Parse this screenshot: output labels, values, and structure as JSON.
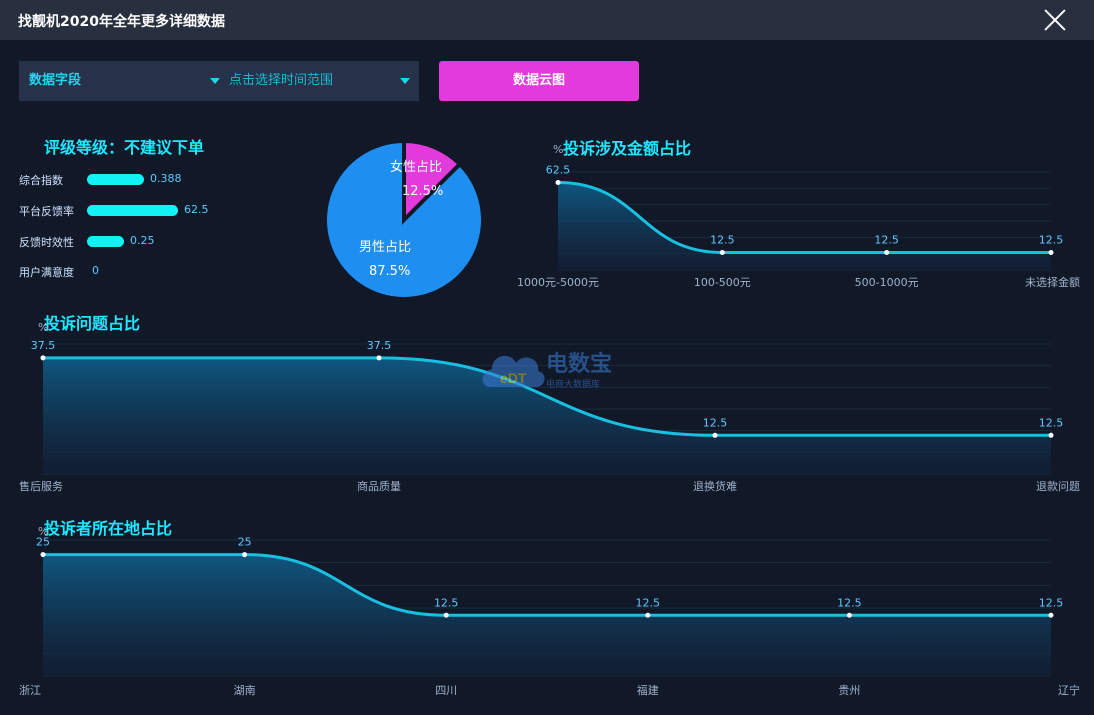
{
  "window": {
    "title": "找靓机2020年全年更多详细数据"
  },
  "filters": {
    "field_select": "数据字段",
    "range_select": "点击选择时间范围",
    "cloud_button": "数据云图"
  },
  "rating": {
    "title": "评级等级：不建议下单",
    "metrics": [
      {
        "label": "综合指数",
        "value": "0.388",
        "fraction": 0.388
      },
      {
        "label": "平台反馈率",
        "value": "62.5",
        "fraction": 0.625
      },
      {
        "label": "反馈时效性",
        "value": "0.25",
        "fraction": 0.25
      },
      {
        "label": "用户满意度",
        "value": "0",
        "fraction": 0
      }
    ]
  },
  "colors": {
    "accent": "#1ee8ff",
    "line": "#19bfe0",
    "pink": "#e23adb",
    "blue": "#1e8ff0"
  },
  "chart_data": [
    {
      "type": "pie",
      "labels": [
        "女性占比",
        "男性占比"
      ],
      "values": [
        12.5,
        87.5
      ],
      "value_labels": [
        "12.5%",
        "87.5%"
      ]
    },
    {
      "type": "area",
      "title": "投诉涉及金额占比",
      "ylabel": "%",
      "categories": [
        "1000元-5000元",
        "100-500元",
        "500-1000元",
        "未选择金额"
      ],
      "values": [
        62.5,
        12.5,
        12.5,
        12.5
      ],
      "ylim": [
        0,
        70
      ]
    },
    {
      "type": "area",
      "title": "投诉问题占比",
      "ylabel": "%",
      "categories": [
        "售后服务",
        "商品质量",
        "退换货难",
        "退款问题"
      ],
      "values": [
        37.5,
        37.5,
        12.5,
        12.5
      ],
      "ylim": [
        0,
        42
      ]
    },
    {
      "type": "area",
      "title": "投诉者所在地占比",
      "ylabel": "%",
      "categories": [
        "浙江",
        "湖南",
        "四川",
        "福建",
        "贵州",
        "辽宁"
      ],
      "values": [
        25,
        25,
        12.5,
        12.5,
        12.5,
        12.5
      ],
      "ylim": [
        0,
        28
      ]
    }
  ]
}
